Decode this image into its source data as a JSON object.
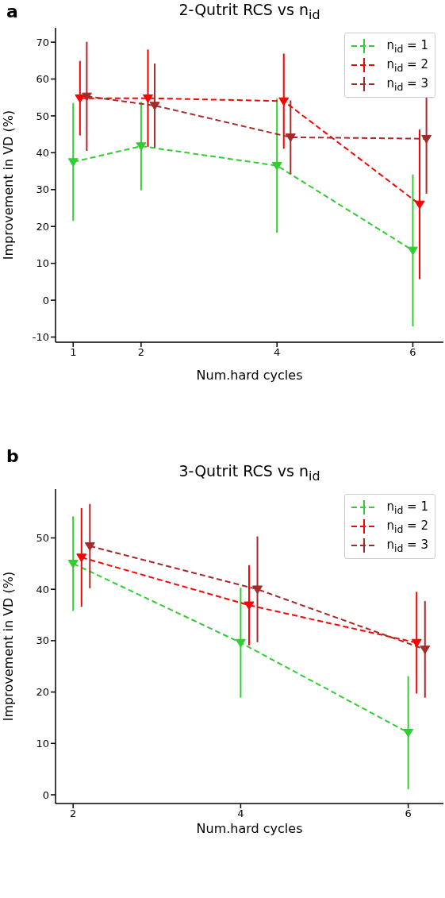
{
  "chart_data": [
    {
      "type": "line",
      "title": "2-Qutrit RCS vs n$_{id}$",
      "xlabel": "Num.hard cycles",
      "ylabel": "Improvement in VD (%)",
      "annotations": [
        "a"
      ],
      "xlim": [
        0.74,
        6.45
      ],
      "xticks": [
        1,
        2,
        4,
        6
      ],
      "ylim": [
        -11.4,
        73.9
      ],
      "yticks": [
        -10,
        0,
        10,
        20,
        30,
        40,
        50,
        60,
        70
      ],
      "legend": "top right",
      "marker": "triangle",
      "line_style": "dashed",
      "grid": false,
      "series": [
        {
          "name": "n$_{id}$ = 1",
          "color": "#32cd32",
          "x": [
            1,
            2,
            4,
            6
          ],
          "values": [
            37.5,
            41.8,
            36.5,
            13.5
          ],
          "errors": [
            16,
            12,
            18.2,
            20.6
          ]
        },
        {
          "name": "n$_{id}$ = 2",
          "color": "#ff0000",
          "x": [
            1.1,
            2.1,
            4.1,
            6.1
          ],
          "values": [
            54.8,
            54.8,
            54,
            26
          ],
          "errors": [
            10.1,
            13.2,
            12.9,
            20.3
          ]
        },
        {
          "name": "n$_{id}$ = 3",
          "color": "#a52a2a",
          "x": [
            1.2,
            2.2,
            4.2,
            6.2
          ],
          "values": [
            55.3,
            52.8,
            44.2,
            43.8
          ],
          "errors": [
            14.8,
            11.4,
            10,
            14.9
          ]
        }
      ]
    },
    {
      "type": "line",
      "title": "3-Qutrit RCS vs n$_{id}$",
      "xlabel": "Num.hard cycles",
      "ylabel": "Improvement in VD (%)",
      "annotations": [
        "b"
      ],
      "xlim": [
        1.79,
        6.42
      ],
      "xticks": [
        2,
        4,
        6
      ],
      "ylim": [
        -1.7,
        59.5
      ],
      "yticks": [
        0,
        10,
        20,
        30,
        40,
        50
      ],
      "legend": "top right",
      "marker": "triangle",
      "line_style": "dashed",
      "grid": false,
      "series": [
        {
          "name": "n$_{id}$ = 1",
          "color": "#32cd32",
          "x": [
            2,
            4,
            6
          ],
          "values": [
            45,
            29.6,
            12.1
          ],
          "errors": [
            9.2,
            10.7,
            11
          ]
        },
        {
          "name": "n$_{id}$ = 2",
          "color": "#ff0000",
          "x": [
            2.1,
            4.1,
            6.1
          ],
          "values": [
            46.2,
            36.9,
            29.6
          ],
          "errors": [
            9.6,
            7.8,
            9.9
          ]
        },
        {
          "name": "n$_{id}$ = 3",
          "color": "#a52a2a",
          "x": [
            2.2,
            4.2,
            6.2
          ],
          "values": [
            48.4,
            40,
            28.3
          ],
          "errors": [
            8.2,
            10.3,
            9.4
          ]
        }
      ]
    }
  ]
}
